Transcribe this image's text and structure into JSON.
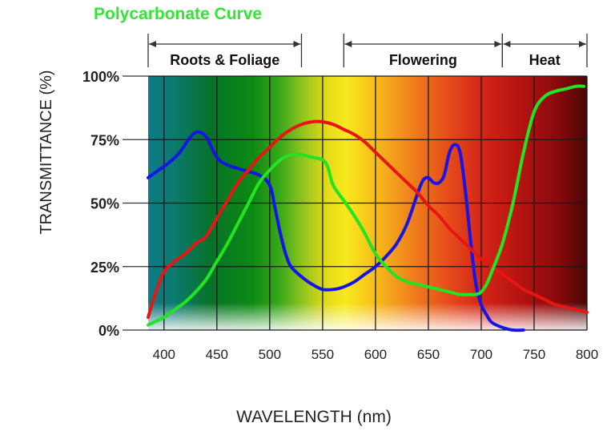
{
  "chart_data": {
    "type": "line",
    "title": "Polycarbonate Curve",
    "xlabel": "WAVELENGTH (nm)",
    "ylabel": "TRANSMITTANCE (%)",
    "xlim": [
      385,
      800
    ],
    "ylim": [
      0,
      100
    ],
    "x_ticks": [
      400,
      450,
      500,
      550,
      600,
      650,
      700,
      750,
      800
    ],
    "y_ticks": [
      {
        "value": 0,
        "label": "0%"
      },
      {
        "value": 25,
        "label": "25%"
      },
      {
        "value": 50,
        "label": "50%"
      },
      {
        "value": 75,
        "label": "75%"
      },
      {
        "value": 100,
        "label": "100%"
      }
    ],
    "grid": true,
    "legend": "none",
    "background": "visible light spectrum gradient",
    "regions": [
      {
        "label": "Roots & Foliage",
        "start": 385,
        "end": 530
      },
      {
        "label": "Flowering",
        "start": 570,
        "end": 720
      },
      {
        "label": "Heat",
        "start": 720,
        "end": 800
      }
    ],
    "series": [
      {
        "color": "#1515e6",
        "x": [
          385,
          395,
          405,
          415,
          425,
          432,
          440,
          450,
          460,
          475,
          490,
          500,
          505,
          510,
          515,
          520,
          530,
          540,
          550,
          560,
          570,
          580,
          590,
          600,
          610,
          620,
          630,
          640,
          645,
          650,
          655,
          660,
          665,
          670,
          675,
          680,
          685,
          690,
          695,
          700,
          705,
          710,
          720,
          730,
          740
        ],
        "y": [
          60,
          63,
          66,
          70,
          76,
          78,
          76,
          68,
          65,
          63,
          61,
          57,
          48,
          38,
          30,
          25,
          21,
          18,
          16,
          16,
          17,
          19,
          22,
          25,
          29,
          34,
          42,
          54,
          59,
          60,
          58,
          58,
          61,
          70,
          73,
          70,
          55,
          35,
          18,
          10,
          6,
          3,
          1,
          0,
          0
        ]
      },
      {
        "color": "#e81515",
        "x": [
          385,
          390,
          395,
          400,
          410,
          420,
          430,
          440,
          450,
          460,
          470,
          480,
          490,
          500,
          510,
          520,
          530,
          540,
          550,
          560,
          570,
          580,
          590,
          600,
          610,
          620,
          630,
          640,
          650,
          660,
          670,
          680,
          690,
          700,
          710,
          720,
          730,
          740,
          750,
          760,
          770,
          780,
          790,
          800
        ],
        "y": [
          5,
          12,
          18,
          23,
          27,
          30,
          34,
          37,
          44,
          51,
          58,
          63,
          68,
          72,
          76,
          79,
          81,
          82,
          82,
          81,
          79,
          77,
          74,
          70,
          66,
          62,
          58,
          54,
          49,
          45,
          40,
          36,
          32,
          28,
          25,
          22,
          19,
          16,
          14,
          12,
          10,
          9,
          8,
          7
        ]
      },
      {
        "color": "#22e422",
        "x": [
          385,
          390,
          400,
          410,
          420,
          430,
          440,
          450,
          460,
          470,
          480,
          490,
          500,
          510,
          520,
          530,
          540,
          550,
          555,
          560,
          570,
          580,
          590,
          600,
          610,
          620,
          630,
          640,
          650,
          660,
          670,
          680,
          690,
          695,
          700,
          705,
          710,
          720,
          730,
          740,
          750,
          760,
          770,
          780,
          790,
          797
        ],
        "y": [
          2,
          3,
          5,
          8,
          11,
          15,
          20,
          27,
          34,
          42,
          50,
          58,
          63,
          67,
          69,
          69,
          68,
          67,
          64,
          57,
          51,
          45,
          38,
          30,
          25,
          21,
          19,
          18,
          17,
          16,
          15,
          14,
          14,
          14,
          15,
          18,
          23,
          34,
          50,
          70,
          86,
          92,
          94,
          95,
          96,
          96
        ]
      }
    ]
  }
}
